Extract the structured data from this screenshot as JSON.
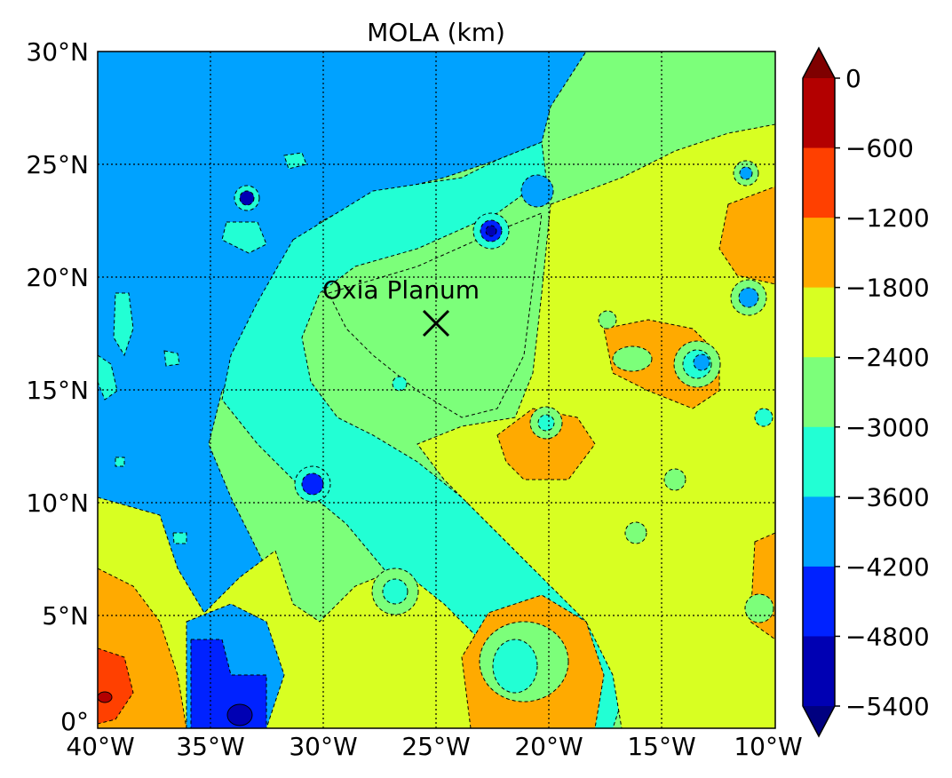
{
  "title": "MOLA (km)",
  "map": {
    "lon_range": [
      -40,
      -10
    ],
    "lat_range": [
      0,
      30
    ],
    "lon_ticks": [
      "40°W",
      "35°W",
      "30°W",
      "25°W",
      "20°W",
      "15°W",
      "10°W"
    ],
    "lat_ticks": [
      "0°",
      "5°N",
      "10°N",
      "15°N",
      "20°N",
      "25°N",
      "30°N"
    ],
    "grid": true,
    "grid_style": "dotted"
  },
  "marker": {
    "label": "Oxia Planum",
    "symbol": "×",
    "lon": -25,
    "lat": 18
  },
  "colorbar": {
    "position": "right",
    "extend": "both",
    "levels": [
      {
        "value": "0",
        "color": "#b30000"
      },
      {
        "value": "−600",
        "color": "#ff4000"
      },
      {
        "value": "−1200",
        "color": "#ffaa00"
      },
      {
        "value": "−1800",
        "color": "#d8ff22"
      },
      {
        "value": "−2400",
        "color": "#7cff7a"
      },
      {
        "value": "−3000",
        "color": "#22ffd4"
      },
      {
        "value": "−3600",
        "color": "#00a2ff"
      },
      {
        "value": "−4200",
        "color": "#0022ff"
      },
      {
        "value": "−4800",
        "color": "#0000b3"
      },
      {
        "value": "−5400",
        "color": "#00007f"
      }
    ],
    "overflow_top_color": "#7f0000",
    "overflow_bottom_color": "#000080"
  }
}
